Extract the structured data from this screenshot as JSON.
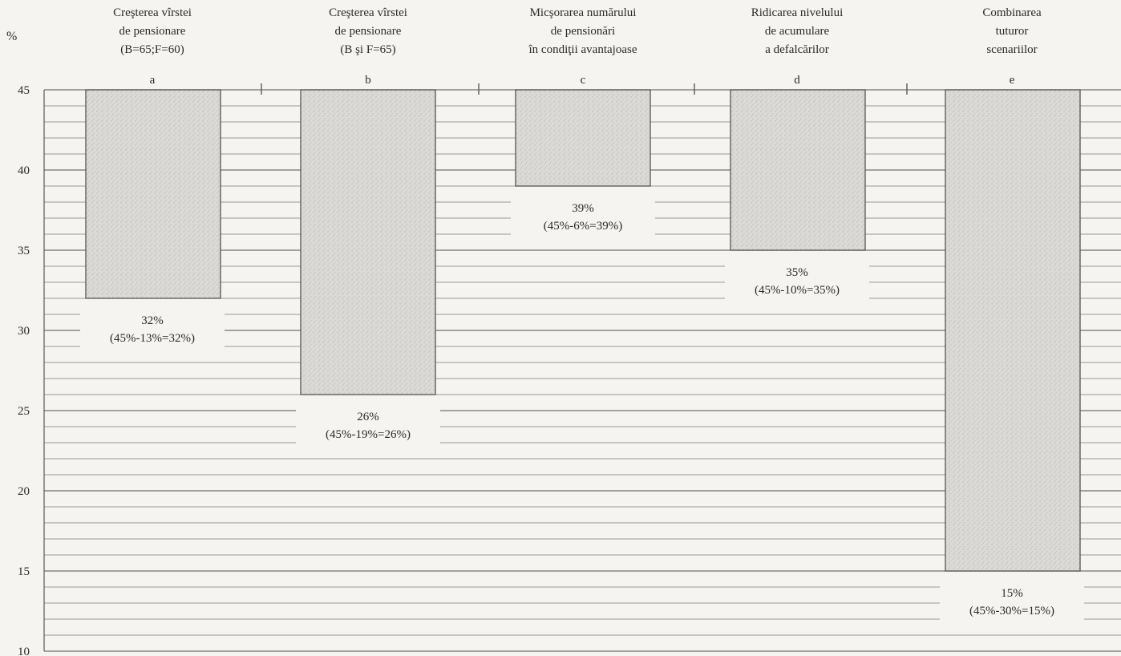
{
  "chart_data": {
    "type": "bar",
    "ylabel": "%",
    "ylim": [
      10,
      45
    ],
    "yticks": [
      10,
      15,
      20,
      25,
      30,
      35,
      40,
      45
    ],
    "baseline": 45,
    "grid": true,
    "categories": [
      {
        "letter": "a",
        "title": [
          "Creşterea vîrstei",
          "de pensionare",
          "(B=65;F=60)"
        ],
        "value": 32,
        "label": "32%",
        "formula": "(45%-13%=32%)"
      },
      {
        "letter": "b",
        "title": [
          "Creşterea vîrstei",
          "de pensionare",
          "(B şi F=65)"
        ],
        "value": 26,
        "label": "26%",
        "formula": "(45%-19%=26%)"
      },
      {
        "letter": "c",
        "title": [
          "Micşorarea numărului",
          "de pensionări",
          "în condiţii avantajoase"
        ],
        "value": 39,
        "label": "39%",
        "formula": "(45%-6%=39%)"
      },
      {
        "letter": "d",
        "title": [
          "Ridicarea nivelului",
          "de acumulare",
          "a defalcărilor"
        ],
        "value": 35,
        "label": "35%",
        "formula": "(45%-10%=35%)"
      },
      {
        "letter": "e",
        "title": [
          "Combinarea",
          "tuturor",
          "scenariilor"
        ],
        "value": 15,
        "label": "15%",
        "formula": "(45%-30%=15%)"
      }
    ],
    "colors": {
      "bar_fill": "#d9d7d4",
      "bar_stroke": "#555555",
      "grid": "#5a5a5a",
      "background": "#f6f4f1",
      "text": "#2a2a2a"
    }
  }
}
